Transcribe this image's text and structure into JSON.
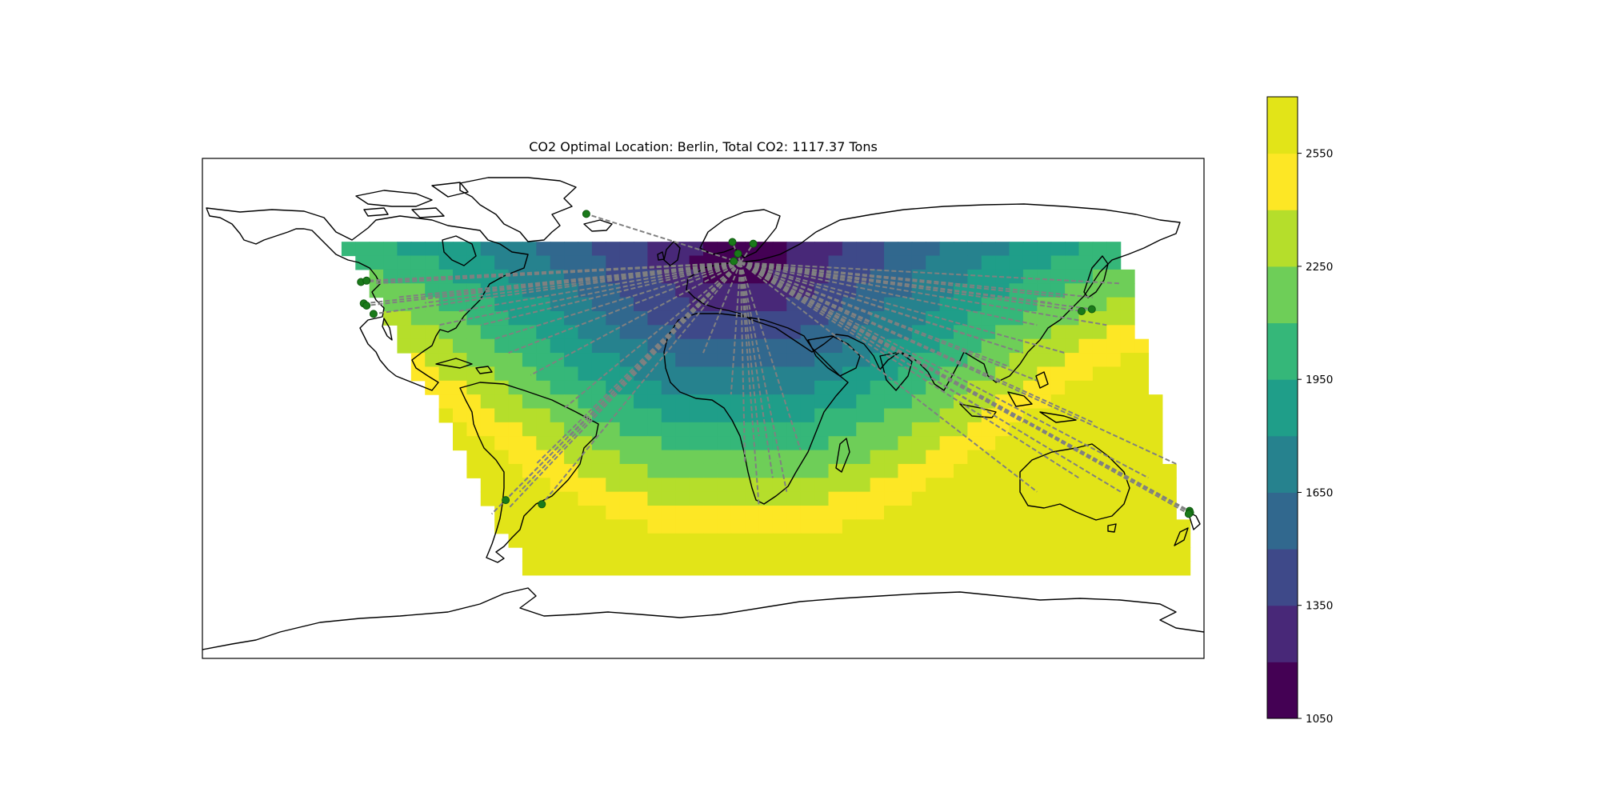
{
  "chart_data": {
    "type": "map-contour",
    "title": "CO2 Optimal Location: Berlin, Total CO2: 1117.37 Tons",
    "optimal_location": "Berlin",
    "total_co2_tons": 1117.37,
    "colorbar": {
      "levels": [
        1050,
        1200,
        1350,
        1500,
        1650,
        1800,
        1950,
        2100,
        2250,
        2400,
        2550,
        2700
      ],
      "tick_values": [
        1050,
        1350,
        1650,
        1950,
        2250,
        2550
      ],
      "tick_labels": [
        "1050",
        "1350",
        "1650",
        "1950",
        "2250",
        "2550"
      ],
      "colors": [
        "#440154",
        "#482878",
        "#3e4989",
        "#31688e",
        "#26828e",
        "#1f9e89",
        "#35b779",
        "#6ece58",
        "#b5de2b",
        "#fde725",
        "#e2e418"
      ]
    },
    "hub": {
      "name": "Berlin",
      "lon": 13.4,
      "lat": 52.5
    },
    "sites": [
      {
        "lon": -42,
        "lat": 70
      },
      {
        "lon": -123,
        "lat": 45.5
      },
      {
        "lon": -121,
        "lat": 46
      },
      {
        "lon": -122,
        "lat": 37.8
      },
      {
        "lon": -118.5,
        "lat": 34
      },
      {
        "lon": -121,
        "lat": 37
      },
      {
        "lon": 10.5,
        "lat": 59.9
      },
      {
        "lon": 18,
        "lat": 59.3
      },
      {
        "lon": 12.5,
        "lat": 55.7
      },
      {
        "lon": 11,
        "lat": 53
      },
      {
        "lon": 139.7,
        "lat": 35.7
      },
      {
        "lon": 136,
        "lat": 35
      },
      {
        "lon": -71,
        "lat": -33
      },
      {
        "lon": -58,
        "lat": -34.5
      },
      {
        "lon": 174.8,
        "lat": -36.9
      },
      {
        "lon": 175,
        "lat": -37.5
      },
      {
        "lon": 174.5,
        "lat": -38
      }
    ],
    "connection_endpoints": [
      [
        -42,
        70
      ],
      [
        -123,
        45.5
      ],
      [
        -121,
        46
      ],
      [
        -122,
        37.8
      ],
      [
        -118.5,
        34
      ],
      [
        -121,
        37
      ],
      [
        -118,
        45
      ],
      [
        -110,
        40
      ],
      [
        -100,
        38
      ],
      [
        -95,
        30
      ],
      [
        -88,
        35
      ],
      [
        -80,
        30
      ],
      [
        -75,
        25
      ],
      [
        -70,
        20
      ],
      [
        -62,
        12
      ],
      [
        -50,
        0
      ],
      [
        -48,
        -10
      ],
      [
        -60,
        -20
      ],
      [
        -66,
        -30
      ],
      [
        -71,
        -33
      ],
      [
        -58,
        -34.5
      ],
      [
        -70,
        -36
      ],
      [
        -76,
        -38
      ],
      [
        10.5,
        59.9
      ],
      [
        18,
        59.3
      ],
      [
        12.5,
        55.7
      ],
      [
        30,
        50
      ],
      [
        40,
        40
      ],
      [
        -10,
        30
      ],
      [
        0,
        20
      ],
      [
        10,
        5
      ],
      [
        20,
        -10
      ],
      [
        25,
        -25
      ],
      [
        30,
        -30
      ],
      [
        20,
        -35
      ],
      [
        35,
        -15
      ],
      [
        15,
        -20
      ],
      [
        139.7,
        35.7
      ],
      [
        136,
        35
      ],
      [
        130,
        40
      ],
      [
        125,
        38
      ],
      [
        140,
        40
      ],
      [
        150,
        45
      ],
      [
        145,
        30
      ],
      [
        120,
        30
      ],
      [
        115,
        20
      ],
      [
        110,
        15
      ],
      [
        105,
        10
      ],
      [
        100,
        25
      ],
      [
        130,
        20
      ],
      [
        120,
        10
      ],
      [
        100,
        0
      ],
      [
        115,
        -5
      ],
      [
        140,
        -5
      ],
      [
        135,
        -25
      ],
      [
        150,
        -30
      ],
      [
        120,
        -30
      ],
      [
        174.8,
        -36.9
      ],
      [
        175,
        -37.5
      ],
      [
        174.5,
        -38
      ],
      [
        160,
        -25
      ],
      [
        170,
        -20
      ],
      [
        60,
        30
      ],
      [
        70,
        20
      ],
      [
        80,
        15
      ],
      [
        90,
        45
      ],
      [
        60,
        45
      ],
      [
        -60,
        45
      ],
      [
        -30,
        45
      ]
    ]
  }
}
